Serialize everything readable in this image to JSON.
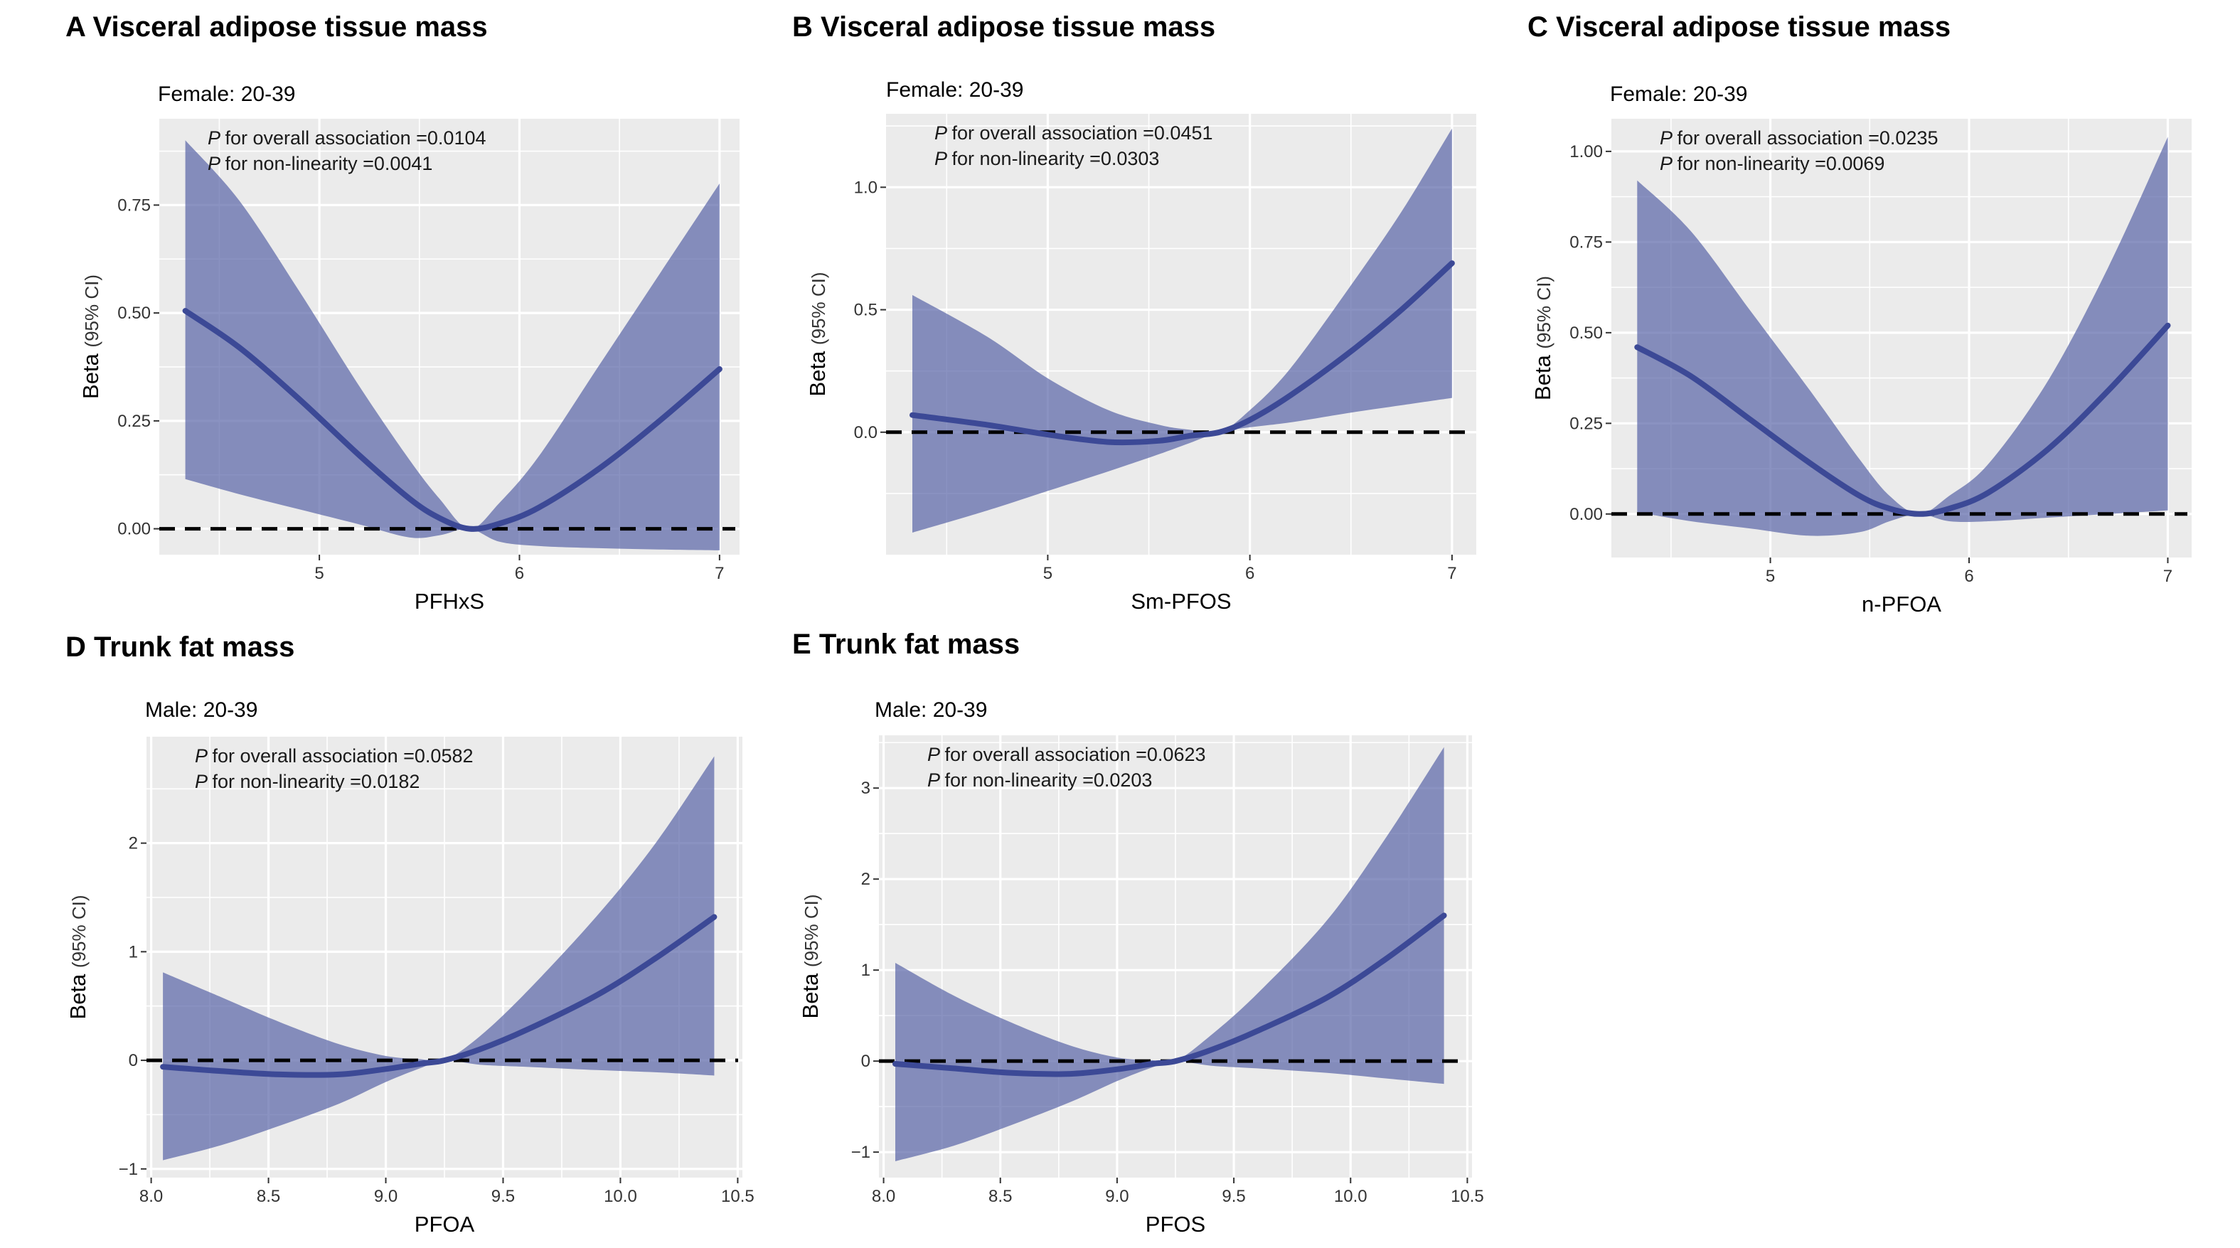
{
  "chart_data": [
    {
      "type": "line",
      "panel_label": "A",
      "title": "Visceral adipose tissue mass",
      "subtitle": "Female: 20-39",
      "xlabel": "PFHxS",
      "ylabel_prefix": "Beta",
      "ylabel_ci": "(95% CI)",
      "annotation_p1": "for overall association =0.0104",
      "annotation_p2": "for non-linearity =0.0041",
      "p_symbol": "P",
      "xlim": [
        4.2,
        7.1
      ],
      "ylim": [
        -0.06,
        0.95
      ],
      "xticks": [
        5,
        6,
        7
      ],
      "yticks": [
        0.0,
        0.25,
        0.5,
        0.75
      ],
      "ytick_labels": [
        "0.00",
        "0.25",
        "0.50",
        "0.75"
      ],
      "grid": true,
      "reference_line": 0,
      "x": [
        4.33,
        4.6,
        4.9,
        5.2,
        5.45,
        5.6,
        5.75,
        5.9,
        6.1,
        6.4,
        6.7,
        7.0
      ],
      "estimate": [
        0.505,
        0.42,
        0.3,
        0.17,
        0.07,
        0.025,
        0.0,
        0.012,
        0.05,
        0.14,
        0.25,
        0.37
      ],
      "lower": [
        0.115,
        0.08,
        0.045,
        0.01,
        -0.02,
        -0.015,
        0.0,
        -0.03,
        -0.04,
        -0.045,
        -0.048,
        -0.05
      ],
      "upper": [
        0.9,
        0.76,
        0.55,
        0.33,
        0.16,
        0.07,
        0.0,
        0.06,
        0.17,
        0.38,
        0.59,
        0.8
      ]
    },
    {
      "type": "line",
      "panel_label": "B",
      "title": "Visceral adipose tissue mass",
      "subtitle": "Female: 20-39",
      "xlabel": "Sm-PFOS",
      "ylabel_prefix": "Beta",
      "ylabel_ci": "(95% CI)",
      "annotation_p1": "for overall association =0.0451",
      "annotation_p2": "for non-linearity =0.0303",
      "p_symbol": "P",
      "xlim": [
        4.2,
        7.12
      ],
      "ylim": [
        -0.5,
        1.3
      ],
      "xticks": [
        5,
        6,
        7
      ],
      "yticks": [
        0.0,
        0.5,
        1.0
      ],
      "ytick_labels": [
        "0.0",
        "0.5",
        "1.0"
      ],
      "grid": true,
      "reference_line": 0,
      "x": [
        4.33,
        4.7,
        5.0,
        5.3,
        5.55,
        5.7,
        5.85,
        6.0,
        6.2,
        6.5,
        6.75,
        7.0
      ],
      "estimate": [
        0.07,
        0.03,
        -0.01,
        -0.04,
        -0.035,
        -0.015,
        0.0,
        0.05,
        0.15,
        0.33,
        0.5,
        0.69
      ],
      "lower": [
        -0.41,
        -0.32,
        -0.24,
        -0.16,
        -0.09,
        -0.045,
        0.0,
        0.02,
        0.04,
        0.08,
        0.11,
        0.14
      ],
      "upper": [
        0.56,
        0.39,
        0.22,
        0.09,
        0.03,
        0.01,
        0.0,
        0.09,
        0.26,
        0.6,
        0.9,
        1.24
      ]
    },
    {
      "type": "line",
      "panel_label": "C",
      "title": "Visceral adipose tissue mass",
      "subtitle": "Female: 20-39",
      "xlabel": "n-PFOA",
      "ylabel_prefix": "Beta",
      "ylabel_ci": "(95% CI)",
      "annotation_p1": "for overall association =0.0235",
      "annotation_p2": "for non-linearity =0.0069",
      "p_symbol": "P",
      "xlim": [
        4.2,
        7.12
      ],
      "ylim": [
        -0.12,
        1.09
      ],
      "xticks": [
        5,
        6,
        7
      ],
      "yticks": [
        0.0,
        0.25,
        0.5,
        0.75,
        1.0
      ],
      "ytick_labels": [
        "0.00",
        "0.25",
        "0.50",
        "0.75",
        "1.00"
      ],
      "grid": true,
      "reference_line": 0,
      "x": [
        4.33,
        4.6,
        4.9,
        5.2,
        5.45,
        5.6,
        5.75,
        5.9,
        6.1,
        6.4,
        6.7,
        7.0
      ],
      "estimate": [
        0.46,
        0.38,
        0.26,
        0.14,
        0.05,
        0.015,
        0.0,
        0.015,
        0.06,
        0.18,
        0.34,
        0.52
      ],
      "lower": [
        0.005,
        -0.02,
        -0.04,
        -0.06,
        -0.05,
        -0.02,
        0.0,
        -0.02,
        -0.02,
        -0.01,
        0.0,
        0.01
      ],
      "upper": [
        0.92,
        0.78,
        0.56,
        0.34,
        0.15,
        0.05,
        0.0,
        0.05,
        0.14,
        0.37,
        0.68,
        1.04
      ]
    },
    {
      "type": "line",
      "panel_label": "D",
      "title": "Trunk fat mass",
      "subtitle": "Male: 20-39",
      "xlabel": "PFOA",
      "ylabel_prefix": "Beta",
      "ylabel_ci": "(95% CI)",
      "annotation_p1": "for overall association =0.0582",
      "annotation_p2": "for non-linearity =0.0182",
      "p_symbol": "P",
      "xlim": [
        7.98,
        10.52
      ],
      "ylim": [
        -1.08,
        2.98
      ],
      "xticks": [
        8.0,
        8.5,
        9.0,
        9.5,
        10.0,
        10.5
      ],
      "xtick_labels": [
        "8.0",
        "8.5",
        "9.0",
        "9.5",
        "10.0",
        "10.5"
      ],
      "yticks": [
        -1,
        0,
        1,
        2
      ],
      "ytick_labels": [
        "−1",
        "0",
        "1",
        "2"
      ],
      "grid": true,
      "reference_line": 0,
      "x": [
        8.05,
        8.3,
        8.55,
        8.8,
        9.0,
        9.15,
        9.25,
        9.4,
        9.6,
        9.9,
        10.15,
        10.4
      ],
      "estimate": [
        -0.06,
        -0.1,
        -0.13,
        -0.13,
        -0.08,
        -0.03,
        0.0,
        0.1,
        0.28,
        0.6,
        0.94,
        1.32
      ],
      "lower": [
        -0.92,
        -0.78,
        -0.6,
        -0.4,
        -0.2,
        -0.07,
        0.0,
        -0.04,
        -0.06,
        -0.09,
        -0.11,
        -0.14
      ],
      "upper": [
        0.81,
        0.58,
        0.35,
        0.15,
        0.04,
        0.01,
        0.0,
        0.22,
        0.63,
        1.33,
        2.0,
        2.8
      ]
    },
    {
      "type": "line",
      "panel_label": "E",
      "title": "Trunk fat mass",
      "subtitle": "Male: 20-39",
      "xlabel": "PFOS",
      "ylabel_prefix": "Beta",
      "ylabel_ci": "(95% CI)",
      "annotation_p1": "for overall association =0.0623",
      "annotation_p2": "for non-linearity =0.0203",
      "p_symbol": "P",
      "xlim": [
        7.98,
        10.52
      ],
      "ylim": [
        -1.28,
        3.58
      ],
      "xticks": [
        8.0,
        8.5,
        9.0,
        9.5,
        10.0,
        10.5
      ],
      "xtick_labels": [
        "8.0",
        "8.5",
        "9.0",
        "9.5",
        "10.0",
        "10.5"
      ],
      "yticks": [
        -1,
        0,
        1,
        2,
        3
      ],
      "ytick_labels": [
        "−1",
        "0",
        "1",
        "2",
        "3"
      ],
      "grid": true,
      "reference_line": 0,
      "x": [
        8.05,
        8.3,
        8.55,
        8.8,
        9.0,
        9.15,
        9.25,
        9.4,
        9.6,
        9.9,
        10.15,
        10.4
      ],
      "estimate": [
        -0.03,
        -0.08,
        -0.13,
        -0.14,
        -0.09,
        -0.03,
        0.0,
        0.12,
        0.33,
        0.7,
        1.12,
        1.6
      ],
      "lower": [
        -1.1,
        -0.93,
        -0.7,
        -0.45,
        -0.22,
        -0.07,
        0.0,
        -0.05,
        -0.08,
        -0.13,
        -0.19,
        -0.25
      ],
      "upper": [
        1.08,
        0.72,
        0.42,
        0.17,
        0.04,
        0.01,
        0.0,
        0.28,
        0.74,
        1.55,
        2.45,
        3.45
      ]
    }
  ],
  "colors": {
    "panel_background": "#ebebeb",
    "grid_line": "#ffffff",
    "ribbon_fill": "#535ea3",
    "estimate_line": "#3c4996",
    "reference_line": "#000000"
  }
}
